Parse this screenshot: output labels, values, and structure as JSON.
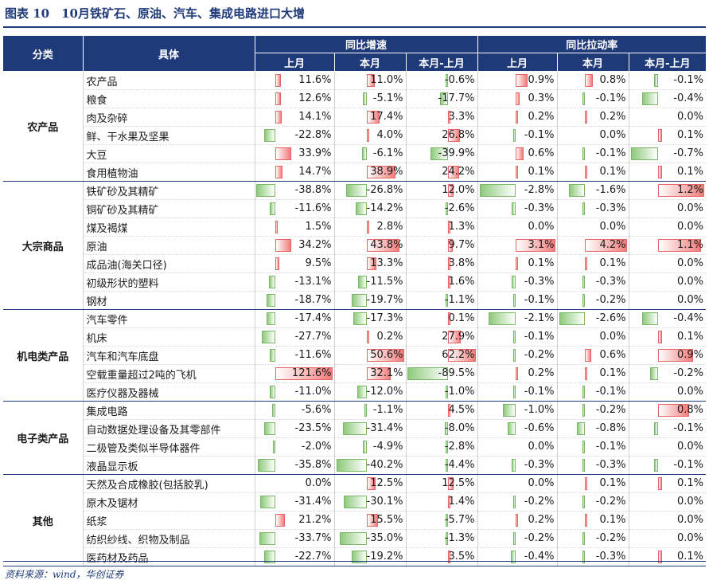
{
  "title": "图表 10　10月铁矿石、原油、汽车、集成电路进口大增",
  "source": "资料来源：wind，华创证券",
  "headers": {
    "category": "分类",
    "item": "具体",
    "group1": "同比增速",
    "group2": "同比拉动率",
    "cols": [
      "上月",
      "本月",
      "本月-上月",
      "上月",
      "本月",
      "本月-上月"
    ]
  },
  "groups": [
    {
      "name": "农产品",
      "rows": [
        {
          "name": "农产品",
          "values": [
            11.6,
            11.0,
            -0.6,
            0.9,
            0.8,
            -0.1
          ],
          "labels": [
            "11.6%",
            "11.0%",
            "-0.6%",
            "0.9%",
            "0.8%",
            "-0.1%"
          ]
        },
        {
          "name": "粮食",
          "values": [
            12.6,
            -5.1,
            -17.7,
            0.3,
            -0.1,
            -0.4
          ],
          "labels": [
            "12.6%",
            "-5.1%",
            "-17.7%",
            "0.3%",
            "-0.1%",
            "-0.4%"
          ]
        },
        {
          "name": "肉及杂碎",
          "values": [
            14.1,
            17.4,
            3.3,
            0.2,
            0.2,
            0.0
          ],
          "labels": [
            "14.1%",
            "17.4%",
            "3.3%",
            "0.2%",
            "0.2%",
            "0.0%"
          ]
        },
        {
          "name": "鲜、干水果及坚果",
          "values": [
            -22.8,
            4.0,
            26.8,
            -0.1,
            0.0,
            0.1
          ],
          "labels": [
            "-22.8%",
            "4.0%",
            "26.8%",
            "-0.1%",
            "0.0%",
            "0.1%"
          ]
        },
        {
          "name": "大豆",
          "values": [
            33.9,
            -6.1,
            -39.9,
            0.6,
            -0.1,
            -0.7
          ],
          "labels": [
            "33.9%",
            "-6.1%",
            "-39.9%",
            "0.6%",
            "-0.1%",
            "-0.7%"
          ]
        },
        {
          "name": "食用植物油",
          "values": [
            14.7,
            38.9,
            24.2,
            0.1,
            0.1,
            0.1
          ],
          "labels": [
            "14.7%",
            "38.9%",
            "24.2%",
            "0.1%",
            "0.1%",
            "0.1%"
          ]
        }
      ]
    },
    {
      "name": "大宗商品",
      "rows": [
        {
          "name": "铁矿砂及其精矿",
          "values": [
            -38.8,
            -26.8,
            12.0,
            -2.8,
            -1.6,
            1.2
          ],
          "labels": [
            "-38.8%",
            "-26.8%",
            "12.0%",
            "-2.8%",
            "-1.6%",
            "1.2%"
          ]
        },
        {
          "name": "铜矿砂及其精矿",
          "values": [
            -11.6,
            -14.2,
            -2.6,
            -0.3,
            -0.3,
            0.0
          ],
          "labels": [
            "-11.6%",
            "-14.2%",
            "-2.6%",
            "-0.3%",
            "-0.3%",
            "0.0%"
          ]
        },
        {
          "name": "煤及褐煤",
          "values": [
            1.5,
            2.8,
            1.3,
            0.0,
            0.0,
            0.0
          ],
          "labels": [
            "1.5%",
            "2.8%",
            "1.3%",
            "0.0%",
            "0.0%",
            "0.0%"
          ]
        },
        {
          "name": "原油",
          "values": [
            34.2,
            43.8,
            9.7,
            3.1,
            4.2,
            1.1
          ],
          "labels": [
            "34.2%",
            "43.8%",
            "9.7%",
            "3.1%",
            "4.2%",
            "1.1%"
          ]
        },
        {
          "name": "成品油(海关口径)",
          "values": [
            9.5,
            13.3,
            3.8,
            0.1,
            0.1,
            0.0
          ],
          "labels": [
            "9.5%",
            "13.3%",
            "3.8%",
            "0.1%",
            "0.1%",
            "0.0%"
          ]
        },
        {
          "name": "初级形状的塑料",
          "values": [
            -13.1,
            -11.5,
            1.6,
            -0.3,
            -0.3,
            0.0
          ],
          "labels": [
            "-13.1%",
            "-11.5%",
            "1.6%",
            "-0.3%",
            "-0.3%",
            "0.0%"
          ]
        },
        {
          "name": "钢材",
          "values": [
            -18.7,
            -19.7,
            -1.1,
            -0.1,
            -0.2,
            0.0
          ],
          "labels": [
            "-18.7%",
            "-19.7%",
            "-1.1%",
            "-0.1%",
            "-0.2%",
            "0.0%"
          ]
        }
      ]
    },
    {
      "name": "机电类产品",
      "rows": [
        {
          "name": "汽车零件",
          "values": [
            -17.4,
            -17.3,
            0.1,
            -2.1,
            -2.6,
            -0.4
          ],
          "labels": [
            "-17.4%",
            "-17.3%",
            "0.1%",
            "-2.1%",
            "-2.6%",
            "-0.4%"
          ]
        },
        {
          "name": "机床",
          "values": [
            -27.7,
            0.2,
            27.9,
            -0.1,
            0.0,
            0.1
          ],
          "labels": [
            "-27.7%",
            "0.2%",
            "27.9%",
            "-0.1%",
            "0.0%",
            "0.1%"
          ]
        },
        {
          "name": "汽车和汽车底盘",
          "values": [
            -11.6,
            50.6,
            62.2,
            -0.2,
            0.6,
            0.9
          ],
          "labels": [
            "-11.6%",
            "50.6%",
            "62.2%",
            "-0.2%",
            "0.6%",
            "0.9%"
          ]
        },
        {
          "name": "空载重量超过2吨的飞机",
          "values": [
            121.6,
            32.1,
            -89.5,
            0.2,
            0.1,
            -0.2
          ],
          "labels": [
            "121.6%",
            "32.1%",
            "-89.5%",
            "0.2%",
            "0.1%",
            "-0.2%"
          ]
        },
        {
          "name": "医疗仪器及器械",
          "values": [
            -11.0,
            -12.0,
            -1.0,
            -0.1,
            -0.1,
            0.0
          ],
          "labels": [
            "-11.0%",
            "-12.0%",
            "-1.0%",
            "-0.1%",
            "-0.1%",
            "0.0%"
          ]
        }
      ]
    },
    {
      "name": "电子类产品",
      "rows": [
        {
          "name": "集成电路",
          "values": [
            -5.6,
            -1.1,
            4.5,
            -1.0,
            -0.2,
            0.8
          ],
          "labels": [
            "-5.6%",
            "-1.1%",
            "4.5%",
            "-1.0%",
            "-0.2%",
            "0.8%"
          ]
        },
        {
          "name": "自动数据处理设备及其零部件",
          "values": [
            -23.5,
            -31.4,
            -8.0,
            -0.6,
            -0.8,
            -0.1
          ],
          "labels": [
            "-23.5%",
            "-31.4%",
            "-8.0%",
            "-0.6%",
            "-0.8%",
            "-0.1%"
          ]
        },
        {
          "name": "二极管及类似半导体器件",
          "values": [
            -2.0,
            -4.9,
            -2.8,
            0.0,
            -0.1,
            0.0
          ],
          "labels": [
            "-2.0%",
            "-4.9%",
            "-2.8%",
            "0.0%",
            "-0.1%",
            "0.0%"
          ]
        },
        {
          "name": "液晶显示板",
          "values": [
            -35.8,
            -40.2,
            -4.4,
            -0.3,
            -0.3,
            -0.1
          ],
          "labels": [
            "-35.8%",
            "-40.2%",
            "-4.4%",
            "-0.3%",
            "-0.3%",
            "-0.1%"
          ]
        }
      ]
    },
    {
      "name": "其他",
      "rows": [
        {
          "name": "天然及合成橡胶(包括胶乳)",
          "values": [
            0.0,
            12.5,
            12.5,
            0.0,
            0.1,
            0.1
          ],
          "labels": [
            "0.0%",
            "12.5%",
            "12.5%",
            "0.0%",
            "0.1%",
            "0.1%"
          ]
        },
        {
          "name": "原木及锯材",
          "values": [
            -31.4,
            -30.1,
            1.4,
            -0.2,
            -0.2,
            0.0
          ],
          "labels": [
            "-31.4%",
            "-30.1%",
            "1.4%",
            "-0.2%",
            "-0.2%",
            "0.0%"
          ]
        },
        {
          "name": "纸浆",
          "values": [
            21.2,
            15.5,
            -5.7,
            0.2,
            0.1,
            0.0
          ],
          "labels": [
            "21.2%",
            "15.5%",
            "-5.7%",
            "0.2%",
            "0.1%",
            "0.0%"
          ]
        },
        {
          "name": "纺织纱线、织物及制品",
          "values": [
            -33.7,
            -35.0,
            -1.3,
            -0.2,
            -0.2,
            0.0
          ],
          "labels": [
            "-33.7%",
            "-35.0%",
            "-1.3%",
            "-0.2%",
            "-0.2%",
            "0.0%"
          ]
        },
        {
          "name": "医药材及药品",
          "values": [
            -22.7,
            -19.2,
            3.5,
            -0.4,
            -0.3,
            0.1
          ],
          "labels": [
            "-22.7%",
            "-19.2%",
            "3.5%",
            "-0.4%",
            "-0.3%",
            "0.1%"
          ]
        }
      ]
    }
  ]
}
